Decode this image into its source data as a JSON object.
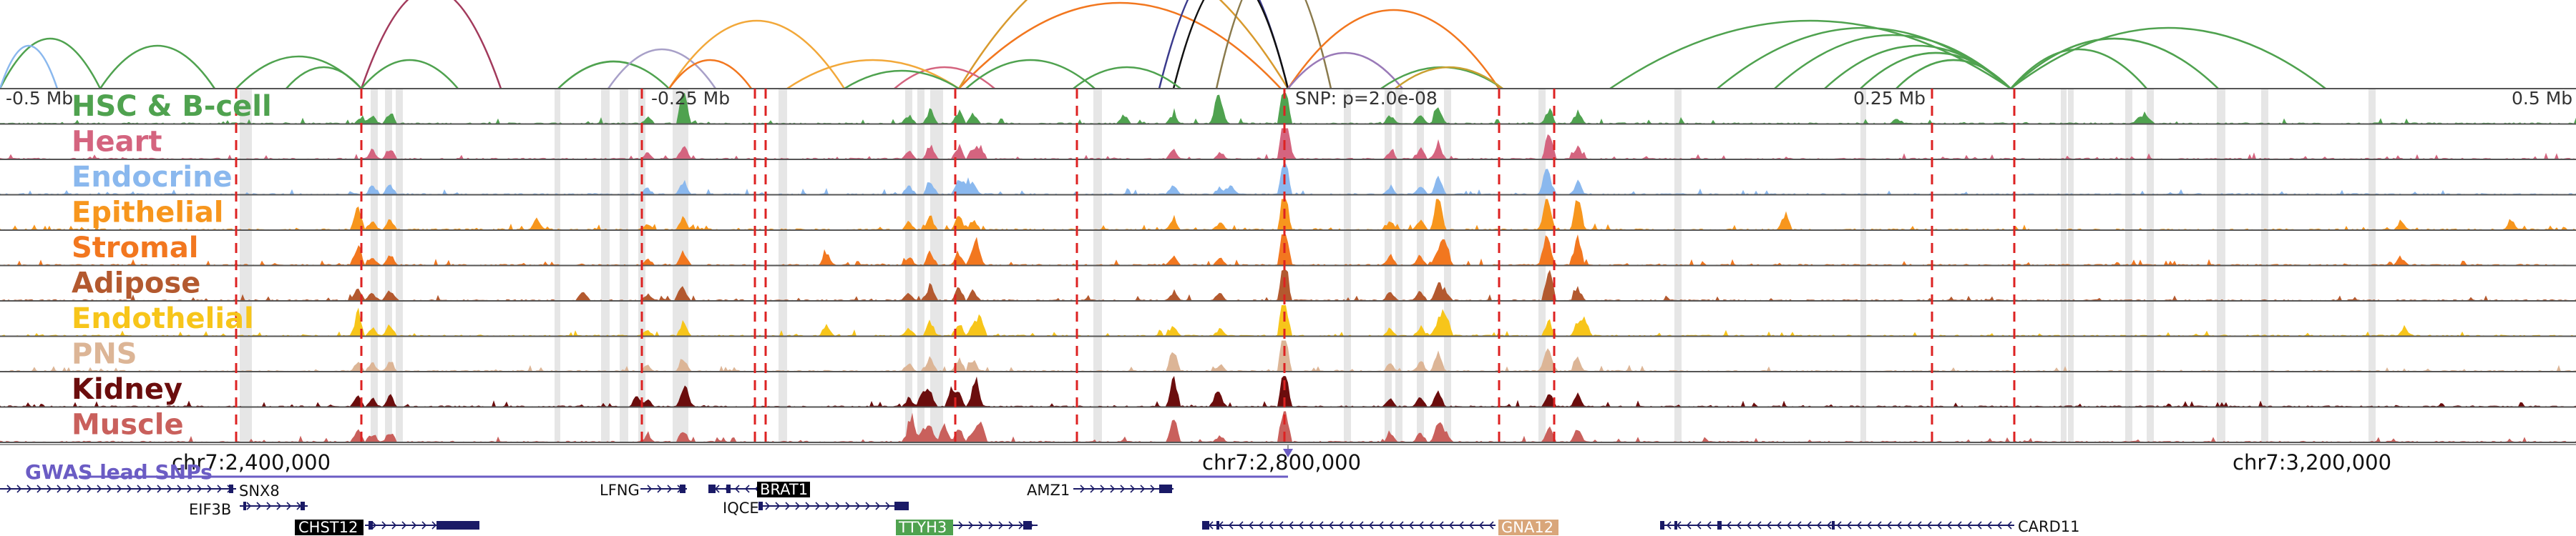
{
  "tracks": [
    {
      "label": "HSC & B-cell",
      "color": "#4fa24f"
    },
    {
      "label": "Heart",
      "color": "#d4647f"
    },
    {
      "label": "Endocrine",
      "color": "#8ab8ee"
    },
    {
      "label": "Epithelial",
      "color": "#f7961d"
    },
    {
      "label": "Stromal",
      "color": "#f2771f"
    },
    {
      "label": "Adipose",
      "color": "#b3592f"
    },
    {
      "label": "Endothelial",
      "color": "#f7c51a"
    },
    {
      "label": "PNS",
      "color": "#dcb596"
    },
    {
      "label": "Kidney",
      "color": "#6b0d0d"
    },
    {
      "label": "Muscle",
      "color": "#c9605c"
    }
  ],
  "ruler": {
    "left": "-0.5 Mb",
    "left_mid": "-0.25 Mb",
    "snp": "SNP: p=2.0e-08",
    "right_mid": "0.25 Mb",
    "right": "0.5 Mb"
  },
  "coords": {
    "a": "chr7:2,400,000",
    "b": "chr7:2,800,000",
    "c": "chr7:3,200,000"
  },
  "gwas_label": "GWAS lead SNPs",
  "genes": {
    "snx8": "SNX8",
    "eif3b": "EIF3B",
    "chst12": "CHST12",
    "lfng": "LFNG",
    "brat1": "BRAT1",
    "iqce": "IQCE",
    "ttyh3": "TTYH3",
    "amz1": "AMZ1",
    "gna12": "GNA12",
    "card11": "CARD11"
  },
  "colors": {
    "guide": "#dd2222",
    "gwas": "#6b5cc4",
    "gene": "#1a1a66",
    "highlight_black": "#000000",
    "highlight_green": "#4fa24f",
    "highlight_tan": "#d9a67a"
  }
}
